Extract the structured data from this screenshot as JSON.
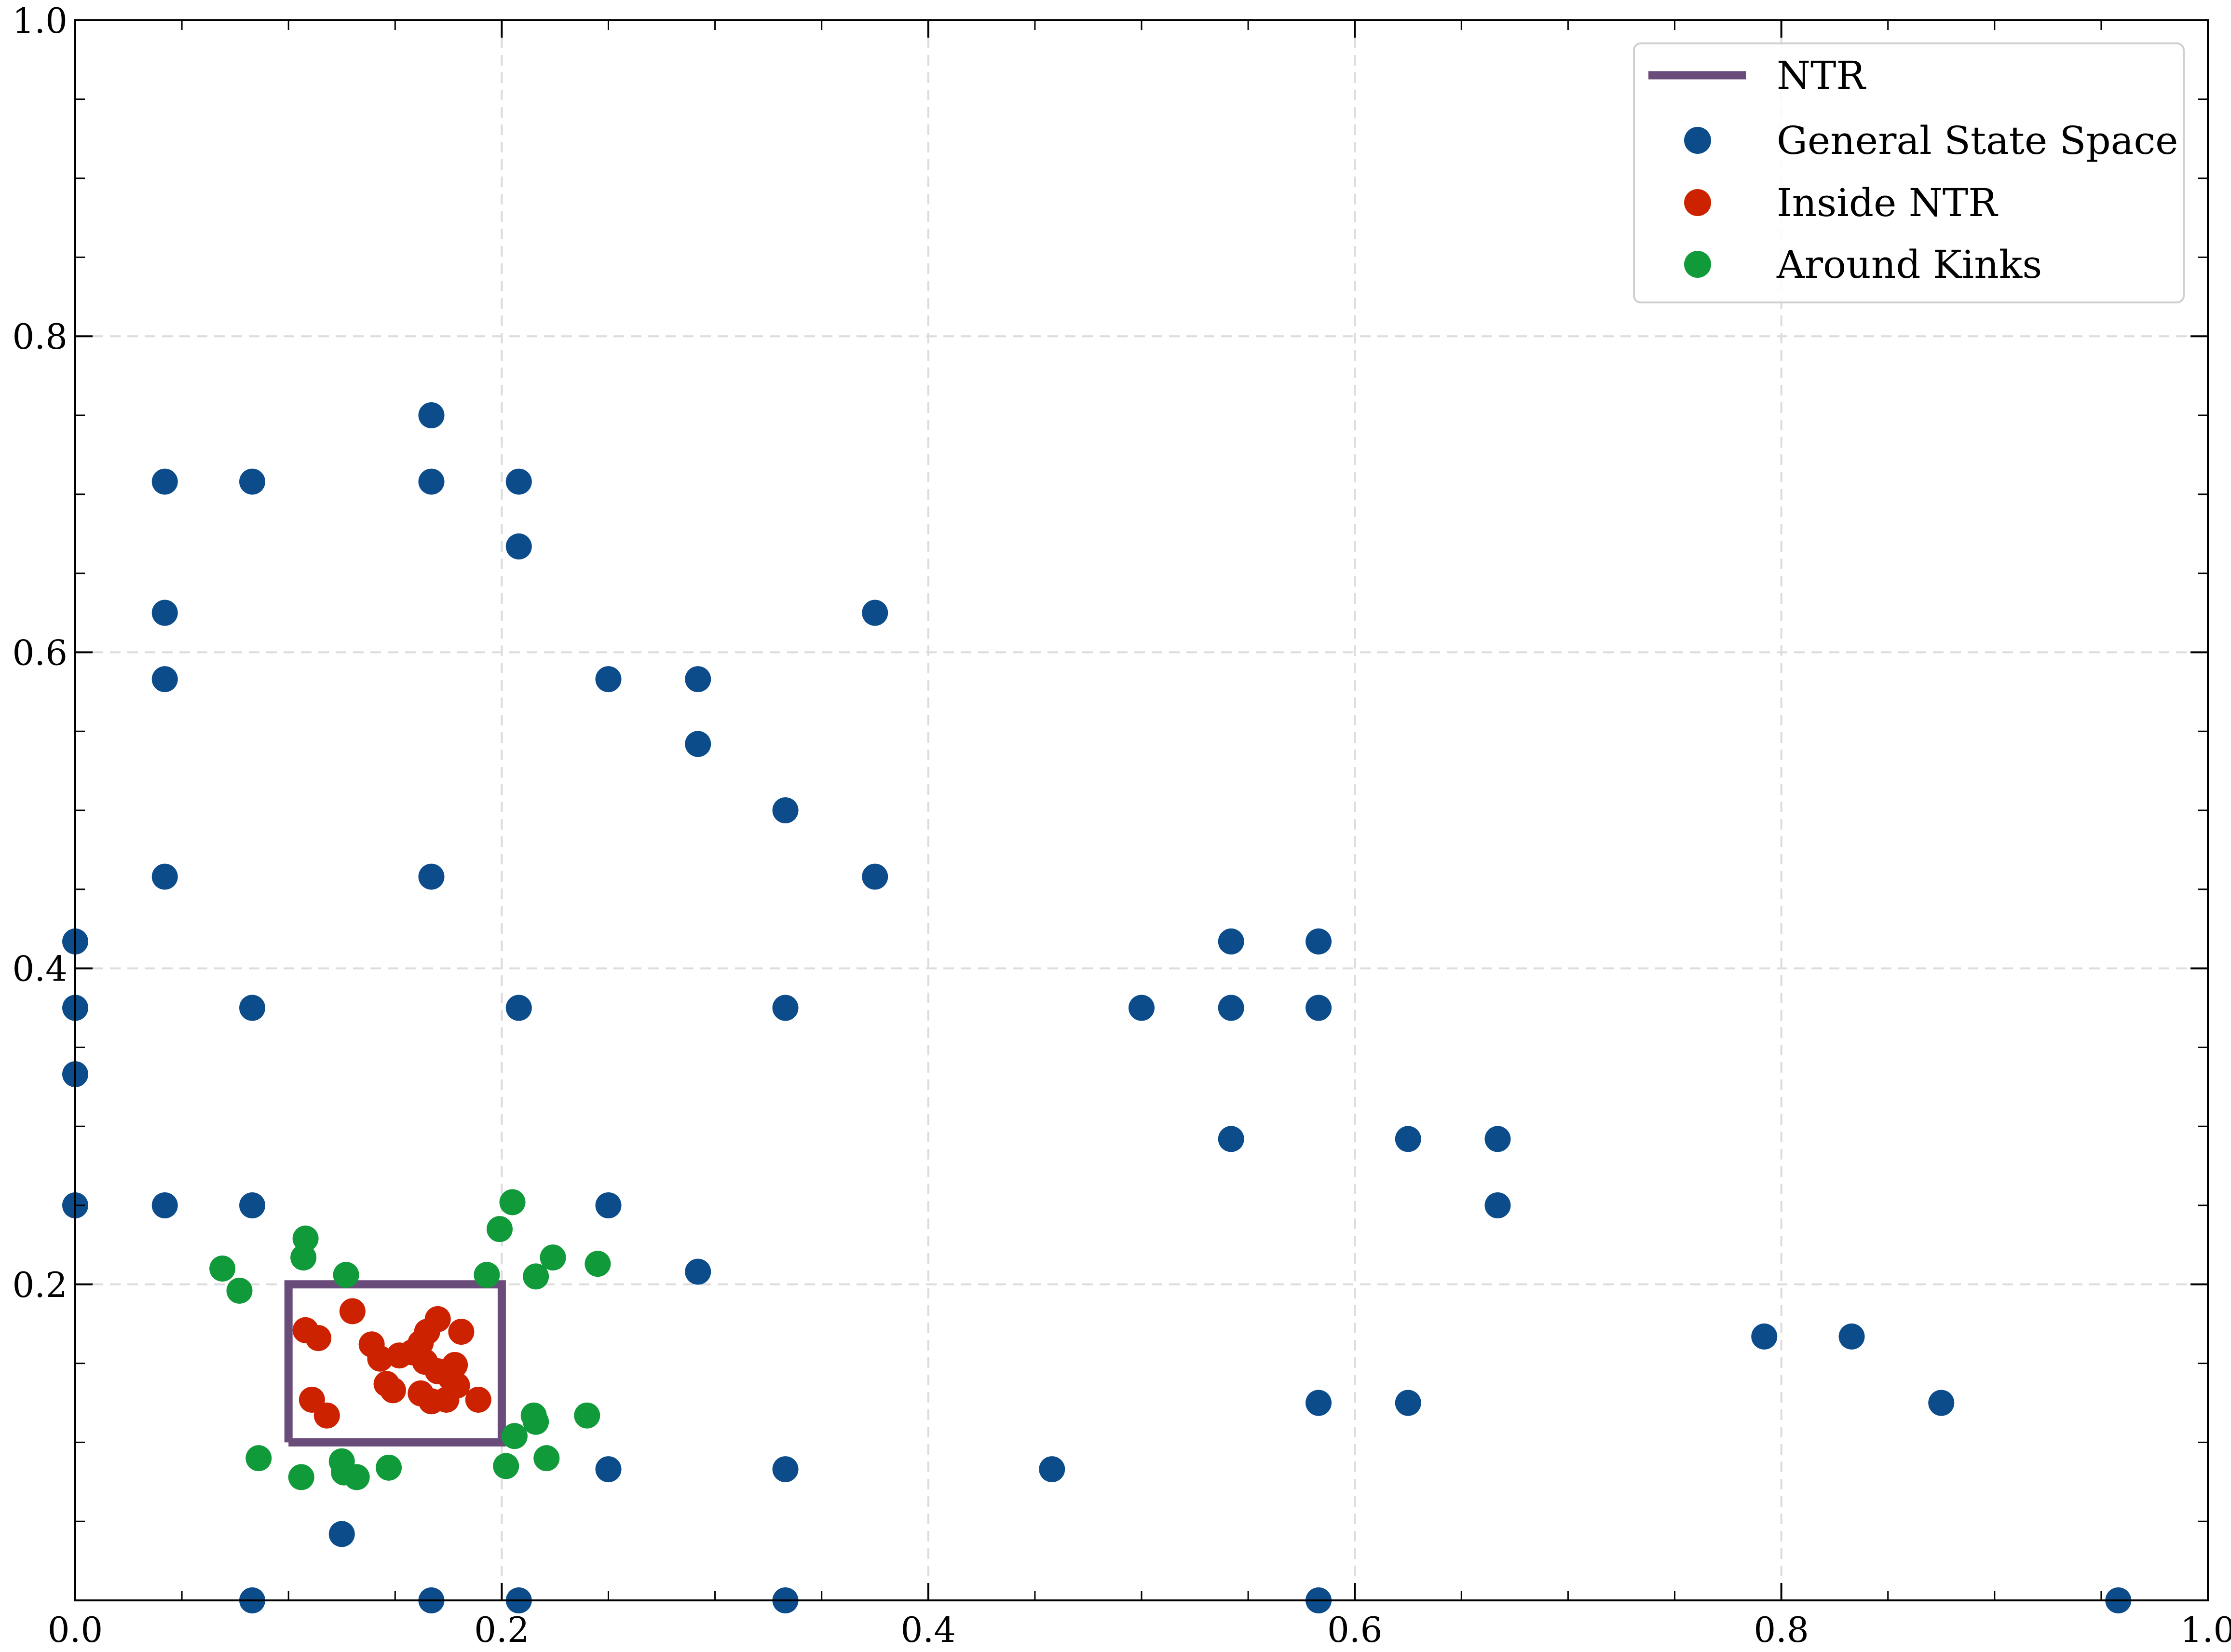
{
  "chart_data": {
    "type": "scatter",
    "title": "",
    "xlabel": "",
    "ylabel": "",
    "xlim": [
      0.0,
      1.0
    ],
    "ylim": [
      0.0,
      1.0
    ],
    "grid": true,
    "legend_position": "top-right",
    "x_ticks": [
      0.0,
      0.2,
      0.4,
      0.6,
      0.8,
      1.0
    ],
    "y_ticks": [
      0.2,
      0.4,
      0.6,
      0.8,
      1.0
    ],
    "x_tick_labels": [
      "0.0",
      "0.2",
      "0.4",
      "0.6",
      "0.8",
      "1.0"
    ],
    "y_tick_labels": [
      "0.2",
      "0.4",
      "0.6",
      "0.8",
      "1.0"
    ],
    "ntr": {
      "name": "NTR",
      "color": "#6a4c7a",
      "x": [
        0.1,
        0.2,
        0.2,
        0.1,
        0.1
      ],
      "y": [
        0.1,
        0.1,
        0.2,
        0.2,
        0.1
      ]
    },
    "series": [
      {
        "name": "General State Space",
        "color": "#0c4c8a",
        "points": [
          [
            0.0,
            0.417
          ],
          [
            0.0,
            0.375
          ],
          [
            0.0,
            0.333
          ],
          [
            0.0,
            0.25
          ],
          [
            0.042,
            0.708
          ],
          [
            0.042,
            0.625
          ],
          [
            0.042,
            0.583
          ],
          [
            0.042,
            0.458
          ],
          [
            0.042,
            0.25
          ],
          [
            0.083,
            0.708
          ],
          [
            0.083,
            0.375
          ],
          [
            0.083,
            0.25
          ],
          [
            0.083,
            0.0
          ],
          [
            0.125,
            0.042
          ],
          [
            0.167,
            0.75
          ],
          [
            0.167,
            0.708
          ],
          [
            0.167,
            0.458
          ],
          [
            0.167,
            0.0
          ],
          [
            0.208,
            0.708
          ],
          [
            0.208,
            0.667
          ],
          [
            0.208,
            0.375
          ],
          [
            0.208,
            0.0
          ],
          [
            0.25,
            0.583
          ],
          [
            0.25,
            0.25
          ],
          [
            0.25,
            0.083
          ],
          [
            0.292,
            0.583
          ],
          [
            0.292,
            0.542
          ],
          [
            0.292,
            0.208
          ],
          [
            0.333,
            0.5
          ],
          [
            0.333,
            0.375
          ],
          [
            0.333,
            0.083
          ],
          [
            0.333,
            0.0
          ],
          [
            0.375,
            0.625
          ],
          [
            0.375,
            0.458
          ],
          [
            0.458,
            0.083
          ],
          [
            0.5,
            0.375
          ],
          [
            0.542,
            0.417
          ],
          [
            0.542,
            0.375
          ],
          [
            0.542,
            0.292
          ],
          [
            0.583,
            0.417
          ],
          [
            0.583,
            0.375
          ],
          [
            0.583,
            0.125
          ],
          [
            0.583,
            0.0
          ],
          [
            0.625,
            0.292
          ],
          [
            0.625,
            0.125
          ],
          [
            0.667,
            0.292
          ],
          [
            0.667,
            0.25
          ],
          [
            0.792,
            0.167
          ],
          [
            0.833,
            0.167
          ],
          [
            0.875,
            0.125
          ],
          [
            0.958,
            0.0
          ]
        ]
      },
      {
        "name": "Inside NTR",
        "color": "#cc2200",
        "points": [
          [
            0.108,
            0.171
          ],
          [
            0.114,
            0.166
          ],
          [
            0.13,
            0.183
          ],
          [
            0.139,
            0.162
          ],
          [
            0.143,
            0.153
          ],
          [
            0.152,
            0.155
          ],
          [
            0.158,
            0.157
          ],
          [
            0.162,
            0.163
          ],
          [
            0.165,
            0.17
          ],
          [
            0.17,
            0.178
          ],
          [
            0.181,
            0.17
          ],
          [
            0.164,
            0.151
          ],
          [
            0.17,
            0.145
          ],
          [
            0.178,
            0.149
          ],
          [
            0.176,
            0.141
          ],
          [
            0.179,
            0.136
          ],
          [
            0.146,
            0.137
          ],
          [
            0.149,
            0.133
          ],
          [
            0.162,
            0.131
          ],
          [
            0.167,
            0.126
          ],
          [
            0.174,
            0.127
          ],
          [
            0.189,
            0.127
          ],
          [
            0.111,
            0.127
          ],
          [
            0.118,
            0.117
          ]
        ]
      },
      {
        "name": "Around Kinks",
        "color": "#109a3a",
        "points": [
          [
            0.069,
            0.21
          ],
          [
            0.077,
            0.196
          ],
          [
            0.108,
            0.229
          ],
          [
            0.107,
            0.217
          ],
          [
            0.127,
            0.206
          ],
          [
            0.193,
            0.206
          ],
          [
            0.205,
            0.252
          ],
          [
            0.199,
            0.235
          ],
          [
            0.216,
            0.205
          ],
          [
            0.224,
            0.217
          ],
          [
            0.245,
            0.213
          ],
          [
            0.086,
            0.09
          ],
          [
            0.106,
            0.078
          ],
          [
            0.125,
            0.088
          ],
          [
            0.126,
            0.081
          ],
          [
            0.132,
            0.078
          ],
          [
            0.147,
            0.084
          ],
          [
            0.202,
            0.085
          ],
          [
            0.206,
            0.104
          ],
          [
            0.215,
            0.117
          ],
          [
            0.216,
            0.113
          ],
          [
            0.221,
            0.09
          ],
          [
            0.24,
            0.117
          ]
        ]
      }
    ]
  }
}
